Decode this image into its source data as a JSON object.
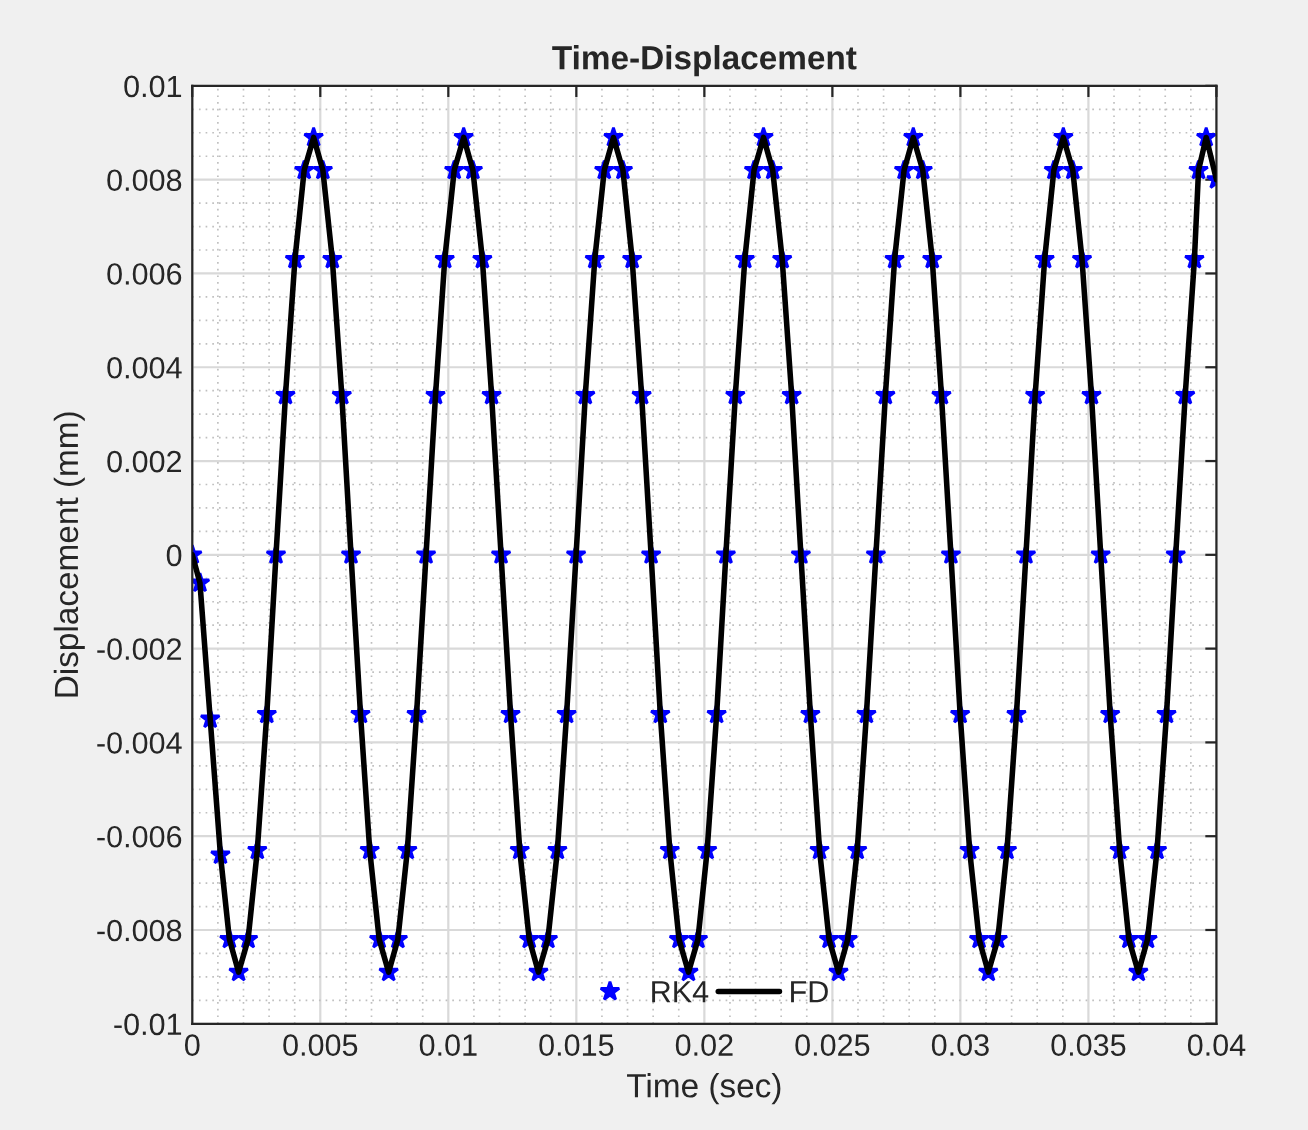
{
  "chart_data": {
    "type": "line",
    "title": "Time-Displacement",
    "xlabel": "Time (sec)",
    "ylabel": "Displacement (mm)",
    "x": [
      0,
      0.0003,
      0.0007,
      0.0011,
      0.00145,
      0.00181,
      0.00218,
      0.00254,
      0.00291,
      0.00327,
      0.00364,
      0.00401,
      0.00437,
      0.00474,
      0.0051,
      0.00547,
      0.00584,
      0.0062,
      0.00657,
      0.00693,
      0.0073,
      0.00767,
      0.00803,
      0.0084,
      0.00876,
      0.00913,
      0.0095,
      0.00986,
      0.01023,
      0.0106,
      0.01096,
      0.01133,
      0.01169,
      0.01206,
      0.01243,
      0.01279,
      0.01316,
      0.01352,
      0.01389,
      0.01426,
      0.01462,
      0.01499,
      0.01535,
      0.01572,
      0.01609,
      0.01645,
      0.01682,
      0.01718,
      0.01755,
      0.01792,
      0.01828,
      0.01865,
      0.01901,
      0.01938,
      0.01975,
      0.02011,
      0.02048,
      0.02084,
      0.02121,
      0.02158,
      0.02194,
      0.02231,
      0.02267,
      0.02304,
      0.02341,
      0.02377,
      0.02414,
      0.0245,
      0.02487,
      0.02524,
      0.0256,
      0.02597,
      0.02633,
      0.0267,
      0.02707,
      0.02743,
      0.0278,
      0.02816,
      0.02853,
      0.0289,
      0.02926,
      0.02963,
      0.02999,
      0.03036,
      0.03073,
      0.03109,
      0.03146,
      0.03182,
      0.03219,
      0.03256,
      0.03292,
      0.03329,
      0.03365,
      0.03402,
      0.03439,
      0.03475,
      0.03512,
      0.03548,
      0.03585,
      0.03622,
      0.03658,
      0.03695,
      0.03731,
      0.03768,
      0.03805,
      0.03841,
      0.03878,
      0.03914,
      0.0393,
      0.0396,
      0.04
    ],
    "series": [
      {
        "name": "RK4",
        "type": "scatter",
        "marker": "star",
        "color": "#0000ff",
        "values": [
          0,
          -0.0006,
          -0.0035,
          -0.0064,
          -0.0082,
          -0.0089,
          -0.0082,
          -0.0063,
          -0.0034,
          0,
          0.0034,
          0.0063,
          0.0082,
          0.0089,
          0.0082,
          0.0063,
          0.0034,
          0,
          -0.0034,
          -0.0063,
          -0.0082,
          -0.0089,
          -0.0082,
          -0.0063,
          -0.0034,
          0,
          0.0034,
          0.0063,
          0.0082,
          0.0089,
          0.0082,
          0.0063,
          0.0034,
          0,
          -0.0034,
          -0.0063,
          -0.0082,
          -0.0089,
          -0.0082,
          -0.0063,
          -0.0034,
          0,
          0.0034,
          0.0063,
          0.0082,
          0.0089,
          0.0082,
          0.0063,
          0.0034,
          0,
          -0.0034,
          -0.0063,
          -0.0082,
          -0.0089,
          -0.0082,
          -0.0063,
          -0.0034,
          0,
          0.0034,
          0.0063,
          0.0082,
          0.0089,
          0.0082,
          0.0063,
          0.0034,
          0,
          -0.0034,
          -0.0063,
          -0.0082,
          -0.0089,
          -0.0082,
          -0.0063,
          -0.0034,
          0,
          0.0034,
          0.0063,
          0.0082,
          0.0089,
          0.0082,
          0.0063,
          0.0034,
          0,
          -0.0034,
          -0.0063,
          -0.0082,
          -0.0089,
          -0.0082,
          -0.0063,
          -0.0034,
          0,
          0.0034,
          0.0063,
          0.0082,
          0.0089,
          0.0082,
          0.0063,
          0.0034,
          0,
          -0.0034,
          -0.0063,
          -0.0082,
          -0.0089,
          -0.0082,
          -0.0063,
          -0.0034,
          0,
          0.0034,
          0.0063,
          0.0082,
          0.0089,
          0.008
        ]
      },
      {
        "name": "FD",
        "marker": "none",
        "line_style": "solid",
        "color": "#000000",
        "values": [
          0,
          -0.0006,
          -0.0035,
          -0.0064,
          -0.0082,
          -0.0089,
          -0.0082,
          -0.0063,
          -0.0034,
          0,
          0.0034,
          0.0063,
          0.0082,
          0.0089,
          0.0082,
          0.0063,
          0.0034,
          0,
          -0.0034,
          -0.0063,
          -0.0082,
          -0.0089,
          -0.0082,
          -0.0063,
          -0.0034,
          0,
          0.0034,
          0.0063,
          0.0082,
          0.0089,
          0.0082,
          0.0063,
          0.0034,
          0,
          -0.0034,
          -0.0063,
          -0.0082,
          -0.0089,
          -0.0082,
          -0.0063,
          -0.0034,
          0,
          0.0034,
          0.0063,
          0.0082,
          0.0089,
          0.0082,
          0.0063,
          0.0034,
          0,
          -0.0034,
          -0.0063,
          -0.0082,
          -0.0089,
          -0.0082,
          -0.0063,
          -0.0034,
          0,
          0.0034,
          0.0063,
          0.0082,
          0.0089,
          0.0082,
          0.0063,
          0.0034,
          0,
          -0.0034,
          -0.0063,
          -0.0082,
          -0.0089,
          -0.0082,
          -0.0063,
          -0.0034,
          0,
          0.0034,
          0.0063,
          0.0082,
          0.0089,
          0.0082,
          0.0063,
          0.0034,
          0,
          -0.0034,
          -0.0063,
          -0.0082,
          -0.0089,
          -0.0082,
          -0.0063,
          -0.0034,
          0,
          0.0034,
          0.0063,
          0.0082,
          0.0089,
          0.0082,
          0.0063,
          0.0034,
          0,
          -0.0034,
          -0.0063,
          -0.0082,
          -0.0089,
          -0.0082,
          -0.0063,
          -0.0034,
          0,
          0.0034,
          0.0063,
          0.0082,
          0.0089,
          0.008
        ]
      }
    ],
    "xlim": [
      0,
      0.04
    ],
    "xticks": [
      0,
      0.005,
      0.01,
      0.015,
      0.02,
      0.025,
      0.03,
      0.035,
      0.04
    ],
    "ylim": [
      -0.01,
      0.01
    ],
    "yticks": [
      -0.01,
      -0.008,
      -0.006,
      -0.004,
      -0.002,
      0,
      0.002,
      0.004,
      0.006,
      0.008,
      0.01
    ],
    "grid": true,
    "legend": "bottom"
  }
}
